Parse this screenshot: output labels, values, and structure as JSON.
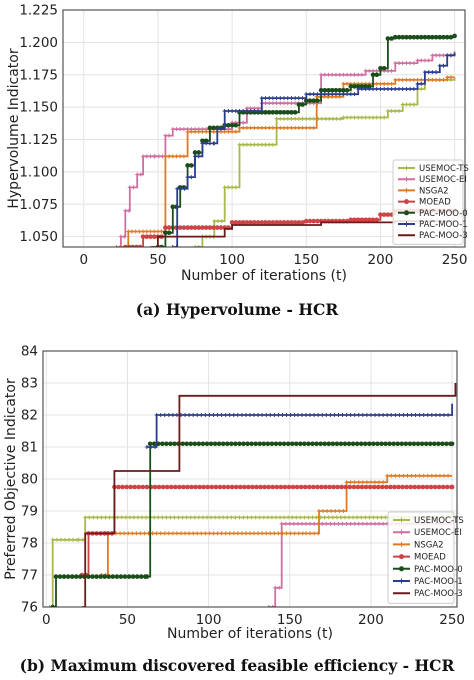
{
  "chart_data": [
    {
      "type": "line",
      "caption": "(a) Hypervolume - HCR",
      "xlabel": "Number of iterations (t)",
      "ylabel": "Hypervolume Indicator",
      "xlim": [
        -14,
        257
      ],
      "ylim": [
        1.042,
        1.225
      ],
      "xticks": [
        0,
        50,
        100,
        150,
        200,
        250
      ],
      "yticks": [
        1.05,
        1.075,
        1.1,
        1.125,
        1.15,
        1.175,
        1.2,
        1.225
      ],
      "ytick_labels": [
        "1.050",
        "1.075",
        "1.100",
        "1.125",
        "1.150",
        "1.175",
        "1.200",
        "1.225"
      ],
      "grid": true,
      "legend_position": "bottom-right",
      "series": [
        {
          "name": "USEMOC-TS",
          "color": "#a9b84a",
          "marker": "plus",
          "x": [
            75,
            80,
            88,
            95,
            105,
            125,
            130,
            158,
            175,
            185,
            205,
            215,
            225,
            230,
            245,
            250
          ],
          "y": [
            1.042,
            1.05,
            1.062,
            1.088,
            1.121,
            1.121,
            1.141,
            1.141,
            1.142,
            1.142,
            1.147,
            1.152,
            1.164,
            1.171,
            1.171,
            1.173
          ]
        },
        {
          "name": "USEMOC-EI",
          "color": "#d16ea0",
          "marker": "plus",
          "x": [
            22,
            25,
            28,
            31,
            36,
            40,
            48,
            55,
            60,
            75,
            100,
            110,
            120,
            130,
            160,
            190,
            210,
            225,
            235,
            250
          ],
          "y": [
            1.042,
            1.05,
            1.07,
            1.088,
            1.098,
            1.112,
            1.112,
            1.128,
            1.133,
            1.133,
            1.138,
            1.149,
            1.153,
            1.153,
            1.175,
            1.178,
            1.184,
            1.186,
            1.19,
            1.193
          ]
        },
        {
          "name": "NSGA2",
          "color": "#e07b22",
          "marker": "plus",
          "x": [
            25,
            30,
            40,
            55,
            70,
            105,
            130,
            157,
            165,
            175,
            210,
            220,
            245,
            250
          ],
          "y": [
            1.042,
            1.054,
            1.054,
            1.112,
            1.131,
            1.134,
            1.134,
            1.158,
            1.158,
            1.168,
            1.171,
            1.171,
            1.173,
            1.173
          ]
        },
        {
          "name": "MOEAD",
          "color": "#cc4444",
          "marker": "circle",
          "x": [
            28,
            40,
            50,
            55,
            100,
            150,
            180,
            200,
            210,
            250
          ],
          "y": [
            1.042,
            1.05,
            1.05,
            1.057,
            1.061,
            1.062,
            1.063,
            1.067,
            1.07,
            1.07
          ]
        },
        {
          "name": "PAC-MOO-0",
          "color": "#1b4d1b",
          "marker": "circle",
          "x": [
            50,
            55,
            60,
            65,
            70,
            75,
            80,
            85,
            90,
            95,
            100,
            105,
            140,
            145,
            150,
            160,
            180,
            195,
            200,
            205,
            210,
            250
          ],
          "y": [
            1.042,
            1.053,
            1.073,
            1.088,
            1.105,
            1.115,
            1.124,
            1.134,
            1.134,
            1.136,
            1.136,
            1.146,
            1.146,
            1.152,
            1.155,
            1.163,
            1.166,
            1.175,
            1.18,
            1.203,
            1.204,
            1.205
          ]
        },
        {
          "name": "PAC-MOO-1",
          "color": "#2b3c8c",
          "marker": "plus",
          "x": [
            60,
            63,
            70,
            75,
            80,
            88,
            90,
            95,
            100,
            120,
            150,
            185,
            225,
            230,
            240,
            245,
            250
          ],
          "y": [
            1.042,
            1.087,
            1.096,
            1.112,
            1.122,
            1.122,
            1.133,
            1.147,
            1.147,
            1.157,
            1.16,
            1.164,
            1.168,
            1.177,
            1.182,
            1.19,
            1.192
          ]
        },
        {
          "name": "PAC-MOO-3",
          "color": "#6b1a1a",
          "marker": "none",
          "x": [
            45,
            50,
            55,
            90,
            95,
            100,
            160,
            200,
            210,
            250
          ],
          "y": [
            1.042,
            1.05,
            1.05,
            1.05,
            1.056,
            1.059,
            1.061,
            1.061,
            1.062,
            1.062
          ]
        }
      ]
    },
    {
      "type": "line",
      "caption": "(b) Maximum discovered feasible efficiency - HCR",
      "xlabel": "Number of iterations (t)",
      "ylabel": "Preferred Objective Indicator",
      "xlim": [
        -2,
        253
      ],
      "ylim": [
        76,
        84
      ],
      "xticks": [
        0,
        50,
        100,
        150,
        200,
        250
      ],
      "yticks": [
        76,
        77,
        78,
        79,
        80,
        81,
        82,
        83,
        84
      ],
      "ytick_labels": [
        "76",
        "77",
        "78",
        "79",
        "80",
        "81",
        "82",
        "83",
        "84"
      ],
      "grid": true,
      "legend_position": "bottom-right",
      "series": [
        {
          "name": "USEMOC-TS",
          "color": "#a9b84a",
          "marker": "plus",
          "x": [
            2,
            4,
            20,
            24,
            250
          ],
          "y": [
            76,
            78.1,
            78.1,
            78.8,
            78.95
          ]
        },
        {
          "name": "USEMOC-EI",
          "color": "#d16ea0",
          "marker": "plus",
          "x": [
            137,
            141,
            145,
            250
          ],
          "y": [
            76,
            76.6,
            78.6,
            78.6
          ]
        },
        {
          "name": "NSGA2",
          "color": "#e07b22",
          "marker": "plus",
          "x": [
            34,
            38,
            160,
            168,
            185,
            210,
            250
          ],
          "y": [
            77,
            78.3,
            78.3,
            79,
            79.9,
            80.1,
            80.1
          ]
        },
        {
          "name": "MOEAD",
          "color": "#cc4444",
          "marker": "circle",
          "x": [
            22,
            26,
            38,
            42,
            250
          ],
          "y": [
            77,
            78.3,
            78.3,
            79.75,
            79.75
          ]
        },
        {
          "name": "PAC-MOO-0",
          "color": "#1b4d1b",
          "marker": "circle",
          "x": [
            4,
            6,
            62,
            64,
            250
          ],
          "y": [
            76,
            76.95,
            76.95,
            81.1,
            81.1
          ]
        },
        {
          "name": "PAC-MOO-1",
          "color": "#2b3c8c",
          "marker": "plus",
          "x": [
            62,
            68,
            155,
            250
          ],
          "y": [
            81,
            82,
            82,
            82.35
          ]
        },
        {
          "name": "PAC-MOO-3",
          "color": "#6b1a1a",
          "marker": "none",
          "x": [
            22,
            24,
            42,
            82,
            250,
            252
          ],
          "y": [
            76,
            78.3,
            80.25,
            82.6,
            82.6,
            83
          ]
        }
      ]
    }
  ]
}
